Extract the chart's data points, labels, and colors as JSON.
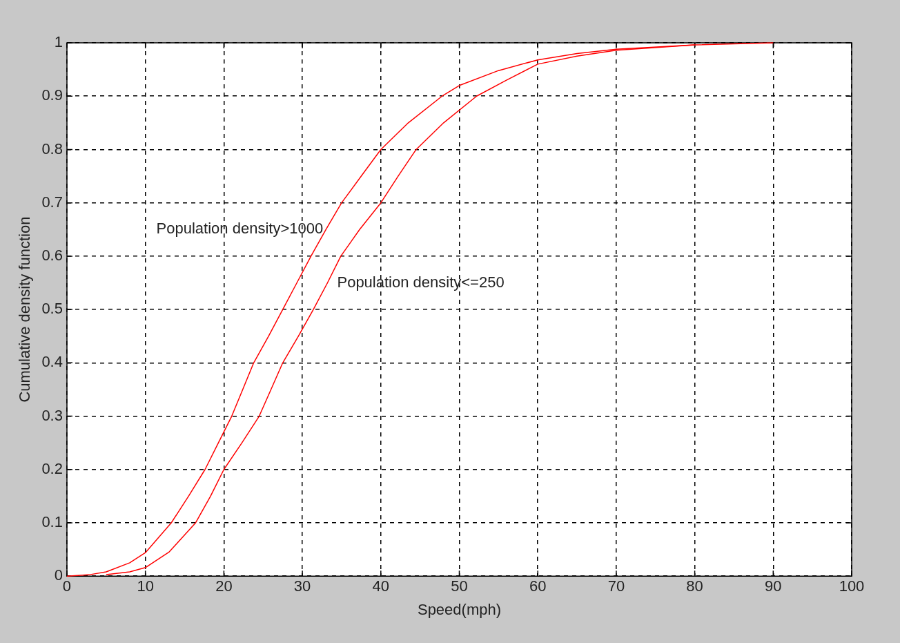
{
  "chart_data": {
    "type": "line",
    "xlabel": "Speed(mph)",
    "ylabel": "Cumulative density function",
    "xlim": [
      0,
      100
    ],
    "xticks": [
      0,
      10,
      20,
      30,
      40,
      50,
      60,
      70,
      80,
      90,
      100
    ],
    "ylim": [
      0,
      1
    ],
    "yticks": [
      0,
      0.1,
      0.2,
      0.3,
      0.4,
      0.5,
      0.6,
      0.7,
      0.8,
      0.9,
      1
    ],
    "grid": true,
    "legend": false,
    "marker": "none",
    "line_style": "solid",
    "series": [
      {
        "name": "Population density>1000",
        "color": "#ff0000",
        "x": [
          0,
          3,
          5,
          8,
          10,
          13.3,
          15.5,
          17.6,
          19.3,
          21,
          22.4,
          23.8,
          25.7,
          27.5,
          29.3,
          31.1,
          33,
          35,
          37.5,
          40,
          43.5,
          47.8,
          50,
          55,
          60,
          65,
          70,
          80
        ],
        "values": [
          0,
          0.003,
          0.008,
          0.025,
          0.044,
          0.1,
          0.15,
          0.2,
          0.25,
          0.3,
          0.35,
          0.4,
          0.45,
          0.5,
          0.55,
          0.6,
          0.65,
          0.7,
          0.75,
          0.8,
          0.85,
          0.9,
          0.92,
          0.948,
          0.968,
          0.98,
          0.988,
          0.996
        ]
      },
      {
        "name": "Population density<=250",
        "color": "#ff0000",
        "x": [
          5,
          8,
          10,
          13,
          16.4,
          18.3,
          20,
          22.3,
          24.5,
          26,
          27.5,
          29.5,
          31.4,
          33.2,
          34.9,
          37.3,
          40,
          42.2,
          44.5,
          48,
          52.2,
          56,
          60,
          65,
          70,
          80,
          90
        ],
        "values": [
          0.003,
          0.008,
          0.016,
          0.045,
          0.1,
          0.15,
          0.2,
          0.25,
          0.3,
          0.35,
          0.4,
          0.45,
          0.5,
          0.55,
          0.6,
          0.65,
          0.7,
          0.75,
          0.8,
          0.85,
          0.9,
          0.93,
          0.96,
          0.975,
          0.986,
          0.996,
          1
        ]
      }
    ]
  }
}
